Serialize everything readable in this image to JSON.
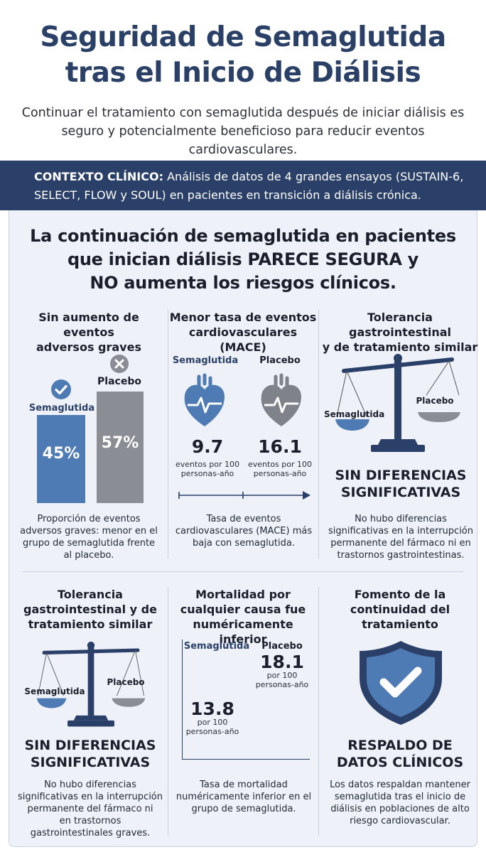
{
  "title": "Seguridad de Semaglutida tras el Inicio de Diálisis",
  "title_line1": "Seguridad de Semaglutida",
  "title_line2": "tras el Inicio de Diálisis",
  "subtitle_line1": "Continuar el tratamiento con semaglutida después de iniciar diálisis es",
  "subtitle_line2": "seguro y potencialmente beneficioso para reducir eventos cardiovasculares.",
  "context": {
    "label": "CONTEXTO CLÍNICO:",
    "text_line1": " Análisis de datos de 4 grandes ensayos (SUSTAIN-6,",
    "text_line2": "SELECT, FLOW y SOUL) en pacientes en transición a diálisis crónica."
  },
  "headline": {
    "line1": "La continuación de semaglutida en pacientes",
    "line2": "que inician diálisis PARECE SEGURA y",
    "line3": "NO aumenta los riesgos clínicos."
  },
  "panels": {
    "adverse": {
      "title_line1": "Sin aumento de eventos",
      "title_line2": "adversos graves",
      "semaglutide_label": "Semaglutida",
      "placebo_label": "Placebo",
      "semaglutide_value": "45%",
      "placebo_value": "57%",
      "semaglutide_pct": 45,
      "placebo_pct": 57,
      "caption_line1": "Proporción de eventos",
      "caption_line2": "adversos graves: menor en el",
      "caption_line3": "grupo de semaglutida frente",
      "caption_line4": "al placebo."
    },
    "mace": {
      "title_line1": "Menor tasa de eventos",
      "title_line2": "cardiovasculares (MACE)",
      "semaglutide_label": "Semaglutida",
      "placebo_label": "Placebo",
      "semaglutide_value": "9.7",
      "placebo_value": "16.1",
      "unit_line1": "eventos por 100",
      "unit_line2": "personas-año",
      "caption_line1": "Tasa de eventos",
      "caption_line2": "cardiovasculares (MACE) más",
      "caption_line3": "baja con semaglutida."
    },
    "tolerance_top": {
      "title_line1": "Tolerancia gastrointestinal",
      "title_line2": "y de tratamiento similar",
      "semaglutide_label": "Semaglutida",
      "placebo_label": "Placebo",
      "result_line1": "SIN DIFERENCIAS",
      "result_line2": "SIGNIFICATIVAS",
      "caption_line1": "No hubo diferencias",
      "caption_line2": "significativas en la interrupción",
      "caption_line3": "permanente del fármaco ni en",
      "caption_line4": "trastornos gastrointestinas."
    },
    "tolerance_bottom": {
      "title_line1": "Tolerancia",
      "title_line2": "gastrointestinal y de",
      "title_line3": "tratamiento similar",
      "semaglutide_label": "Semaglutida",
      "placebo_label": "Placebo",
      "result_line1": "SIN DIFERENCIAS",
      "result_line2": "SIGNIFICATIVAS",
      "caption_line1": "No hubo diferencias",
      "caption_line2": "significativas en la interrupción",
      "caption_line3": "permanente del fármaco ni",
      "caption_line4": "en trastornos",
      "caption_line5": "gastrointestinales graves."
    },
    "mortality": {
      "title_line1": "Mortalidad por",
      "title_line2": "cualquier causa fue",
      "title_line3": "numéricamente inferior",
      "semaglutide_label": "Semaglutida",
      "placebo_label": "Placebo",
      "semaglutide_value": "13.8",
      "placebo_value": "18.1",
      "unit_line1": "por 100",
      "unit_line2": "personas-año",
      "caption_line1": "Tasa de mortalidad",
      "caption_line2": "numéricamente inferior en el",
      "caption_line3": "grupo de semaglutida."
    },
    "continuity": {
      "title_line1": "Fomento de la",
      "title_line2": "continuidad del",
      "title_line3": "tratamiento",
      "result_line1": "RESPALDO DE",
      "result_line2": "DATOS CLÍNICOS",
      "caption_line1": "Los datos respaldan mantener",
      "caption_line2": "semaglutida tras el inicio de",
      "caption_line3": "diálisis en poblaciones de alto",
      "caption_line4": "riesgo cardiovascular."
    }
  },
  "colors": {
    "navy": "#2b4068",
    "blue": "#4f7bb5",
    "gray": "#8a8d93",
    "panel_bg": "#eef2f8"
  },
  "icons": [
    "check-icon",
    "x-icon",
    "heart-icon",
    "balance-scale-icon",
    "shield-check-icon",
    "arrow-right-icon"
  ]
}
